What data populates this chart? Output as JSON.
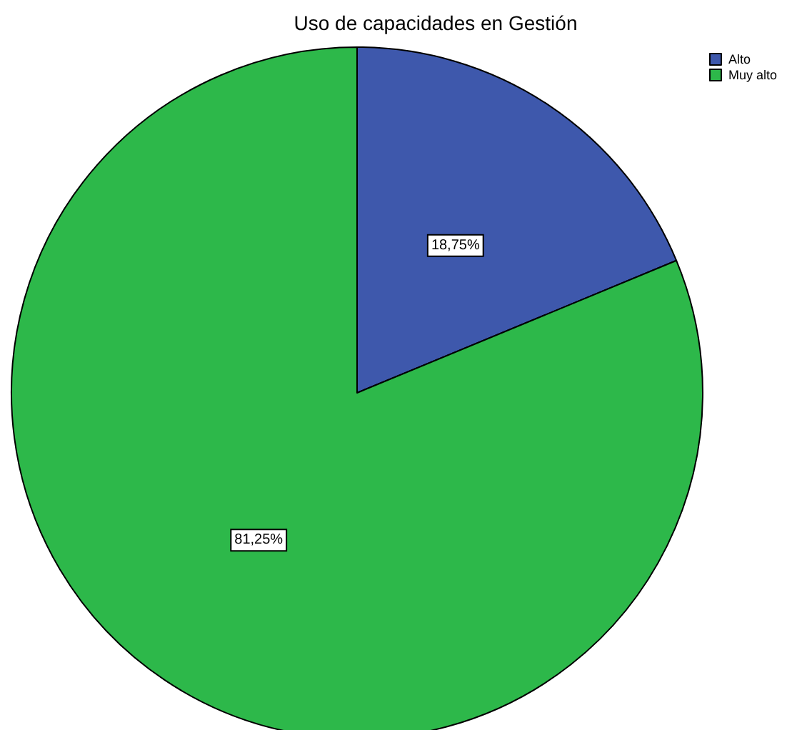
{
  "chart_data": {
    "type": "pie",
    "title": "Uso de capacidades en Gestión",
    "categories": [
      "Alto",
      "Muy alto"
    ],
    "values": [
      18.75,
      81.25
    ],
    "colors": [
      "#3e58ac",
      "#2db84a"
    ],
    "value_labels": [
      "18,75%",
      "81,25%"
    ],
    "legend": "top right"
  }
}
